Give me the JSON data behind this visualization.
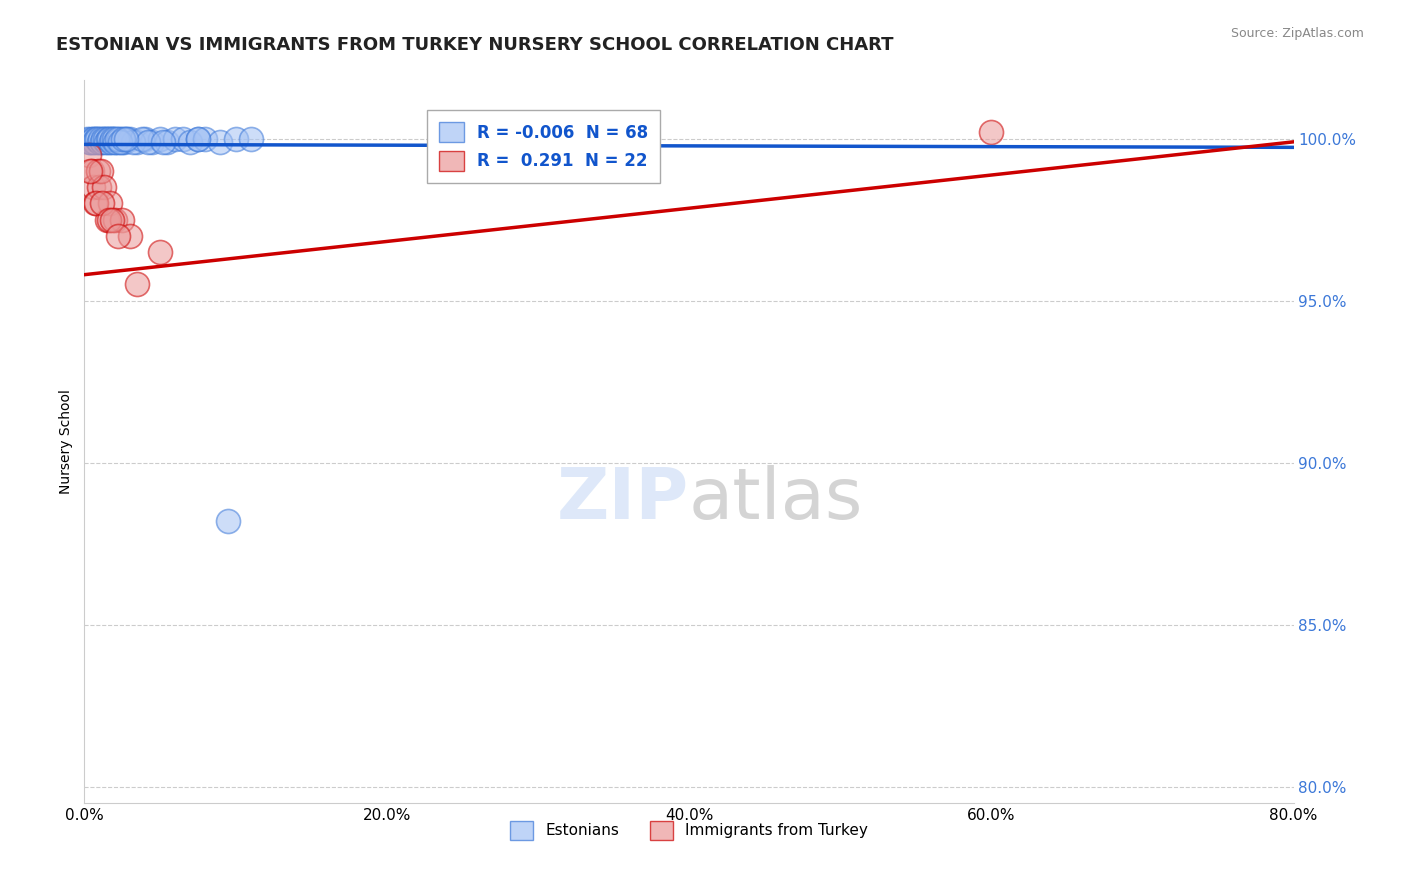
{
  "title": "ESTONIAN VS IMMIGRANTS FROM TURKEY NURSERY SCHOOL CORRELATION CHART",
  "source": "Source: ZipAtlas.com",
  "xlabel_values": [
    0.0,
    20.0,
    40.0,
    60.0,
    80.0
  ],
  "ylabel_values": [
    80.0,
    85.0,
    90.0,
    95.0,
    100.0
  ],
  "xlim": [
    0.0,
    80.0
  ],
  "ylim": [
    79.5,
    101.8
  ],
  "blue_R": -0.006,
  "blue_N": 68,
  "pink_R": 0.291,
  "pink_N": 22,
  "legend_label_blue": "Estonians",
  "legend_label_pink": "Immigrants from Turkey",
  "ylabel": "Nursery School",
  "blue_color": "#a4c2f4",
  "pink_color": "#ea9999",
  "blue_edge_color": "#3c78d8",
  "pink_edge_color": "#cc0000",
  "blue_line_color": "#1155cc",
  "pink_line_color": "#cc0000",
  "blue_scatter_x": [
    0.2,
    0.3,
    0.4,
    0.5,
    0.6,
    0.7,
    0.8,
    0.9,
    1.0,
    1.1,
    1.2,
    1.3,
    1.4,
    1.5,
    1.6,
    1.7,
    1.8,
    1.9,
    2.0,
    2.1,
    2.2,
    2.4,
    2.6,
    2.8,
    0.35,
    0.55,
    0.65,
    0.75,
    0.85,
    0.95,
    1.05,
    1.15,
    1.25,
    1.35,
    1.45,
    1.55,
    1.65,
    1.75,
    1.85,
    1.95,
    2.05,
    2.3,
    2.5,
    2.7,
    3.0,
    3.5,
    4.0,
    4.5,
    5.0,
    5.5,
    6.0,
    6.5,
    7.0,
    7.5,
    8.0,
    9.0,
    10.0,
    11.0,
    3.2,
    3.8,
    4.2,
    2.15,
    2.35,
    2.55,
    2.75,
    5.2,
    7.5,
    9.5
  ],
  "blue_scatter_y": [
    100.0,
    99.9,
    100.0,
    99.9,
    100.0,
    100.0,
    99.9,
    100.0,
    99.9,
    100.0,
    99.9,
    100.0,
    100.0,
    99.9,
    100.0,
    99.9,
    100.0,
    100.0,
    99.9,
    100.0,
    99.9,
    100.0,
    99.9,
    100.0,
    99.9,
    100.0,
    99.9,
    100.0,
    100.0,
    99.9,
    100.0,
    99.9,
    100.0,
    100.0,
    99.9,
    100.0,
    100.0,
    99.9,
    100.0,
    100.0,
    99.9,
    100.0,
    99.9,
    100.0,
    100.0,
    99.9,
    100.0,
    99.9,
    100.0,
    99.9,
    100.0,
    100.0,
    99.9,
    100.0,
    100.0,
    99.9,
    100.0,
    100.0,
    99.9,
    100.0,
    99.9,
    100.0,
    99.9,
    100.0,
    100.0,
    99.9,
    100.0,
    88.2
  ],
  "pink_scatter_x": [
    0.3,
    0.5,
    0.6,
    0.7,
    0.9,
    1.0,
    1.1,
    1.3,
    1.5,
    1.7,
    2.0,
    2.5,
    3.0,
    0.4,
    0.8,
    1.2,
    1.6,
    1.8,
    2.2,
    3.5,
    60.0,
    5.0
  ],
  "pink_scatter_y": [
    99.5,
    99.0,
    98.5,
    98.0,
    99.0,
    98.5,
    99.0,
    98.5,
    97.5,
    98.0,
    97.5,
    97.5,
    97.0,
    99.0,
    98.0,
    98.0,
    97.5,
    97.5,
    97.0,
    95.5,
    100.2,
    96.5
  ],
  "blue_trendline_y0": 99.82,
  "blue_trendline_y1": 99.73,
  "pink_trendline_y0": 95.8,
  "pink_trendline_y1": 99.9,
  "grid_color": "#aaaaaa",
  "bg_color": "#ffffff",
  "title_fontsize": 13,
  "axis_fontsize": 10,
  "tick_fontsize": 11
}
